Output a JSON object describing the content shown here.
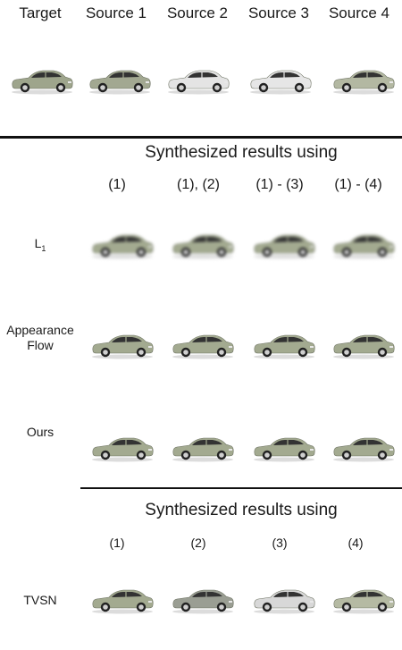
{
  "header": {
    "columns": [
      "Target",
      "Source 1",
      "Source 2",
      "Source 3",
      "Source 4"
    ]
  },
  "top_row_cars": [
    {
      "label": "target-car",
      "body": "#9ea58c",
      "blur": false
    },
    {
      "label": "source-1-car",
      "body": "#a2a891",
      "blur": false
    },
    {
      "label": "source-2-car",
      "body": "#e4e4e4",
      "blur": false
    },
    {
      "label": "source-3-car",
      "body": "#e6e6e6",
      "blur": false
    },
    {
      "label": "source-4-car",
      "body": "#b3b8a2",
      "blur": false
    }
  ],
  "section1": {
    "title": "Synthesized results using",
    "columns": [
      "(1)",
      "(1), (2)",
      "(1) - (3)",
      "(1) - (4)"
    ],
    "rows": [
      {
        "label_main": "L",
        "label_sub": "1",
        "style": "blur"
      },
      {
        "label_main": "Appearance Flow",
        "label_sub": "",
        "style": "sharp"
      },
      {
        "label_main": "Ours",
        "label_sub": "",
        "style": "sharp"
      }
    ]
  },
  "section2": {
    "title": "Synthesized results using",
    "columns": [
      "(1)",
      "(2)",
      "(3)",
      "(4)"
    ],
    "rows": [
      {
        "label_main": "TVSN",
        "label_sub": "",
        "style": "sharp"
      }
    ]
  },
  "colors": {
    "car_body": "#a3aa90",
    "car_window": "#333333",
    "tire": "#222222",
    "rim": "#cfcfcf",
    "rule": "#111111"
  }
}
